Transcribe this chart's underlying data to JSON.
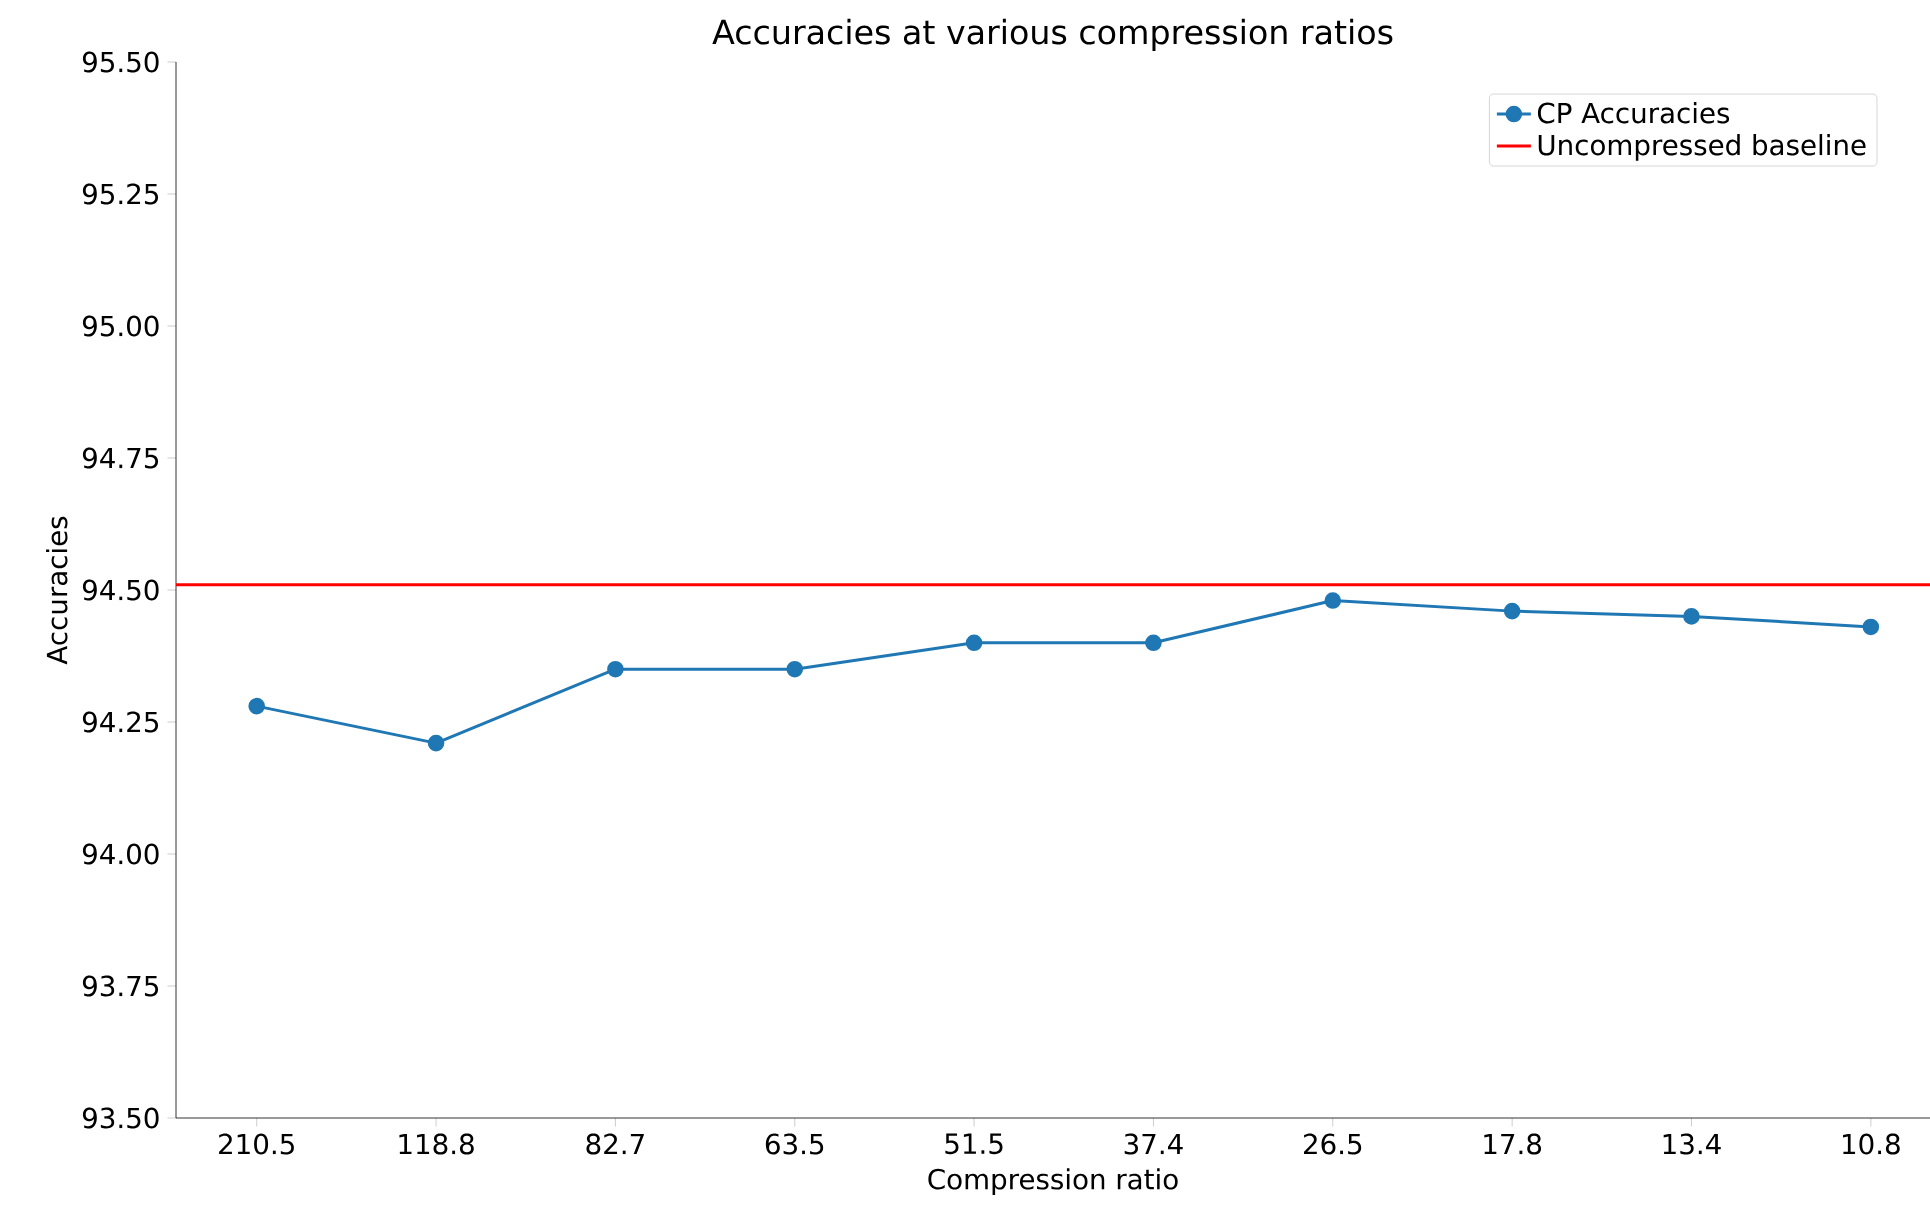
{
  "chart_data": {
    "type": "line",
    "title": "Accuracies at various compression ratios",
    "xlabel": "Compression ratio",
    "ylabel": "Accuracies",
    "categories": [
      "210.5",
      "118.8",
      "82.7",
      "63.5",
      "51.5",
      "37.4",
      "26.5",
      "17.8",
      "13.4",
      "10.8"
    ],
    "series": [
      {
        "name": "CP Accuracies",
        "color": "#1f77b4",
        "values": [
          94.28,
          94.21,
          94.35,
          94.35,
          94.4,
          94.4,
          94.48,
          94.46,
          94.45,
          94.43
        ]
      }
    ],
    "ref_lines": [
      {
        "axis": "y",
        "value": 94.51,
        "label": "Uncompressed baseline",
        "color": "#ff0000",
        "line_style": "solid"
      }
    ],
    "ylim": [
      93.5,
      95.5
    ],
    "yticks": [
      {
        "value": 93.5,
        "label": "93.50"
      },
      {
        "value": 93.75,
        "label": "93.75"
      },
      {
        "value": 94.0,
        "label": "94.00"
      },
      {
        "value": 94.25,
        "label": "94.25"
      },
      {
        "value": 94.5,
        "label": "94.50"
      },
      {
        "value": 94.75,
        "label": "94.75"
      },
      {
        "value": 95.0,
        "label": "95.00"
      },
      {
        "value": 95.25,
        "label": "95.25"
      },
      {
        "value": 95.5,
        "label": "95.50"
      }
    ],
    "marker": "circle",
    "line_style": "solid",
    "legend": "top right",
    "grid": false
  }
}
